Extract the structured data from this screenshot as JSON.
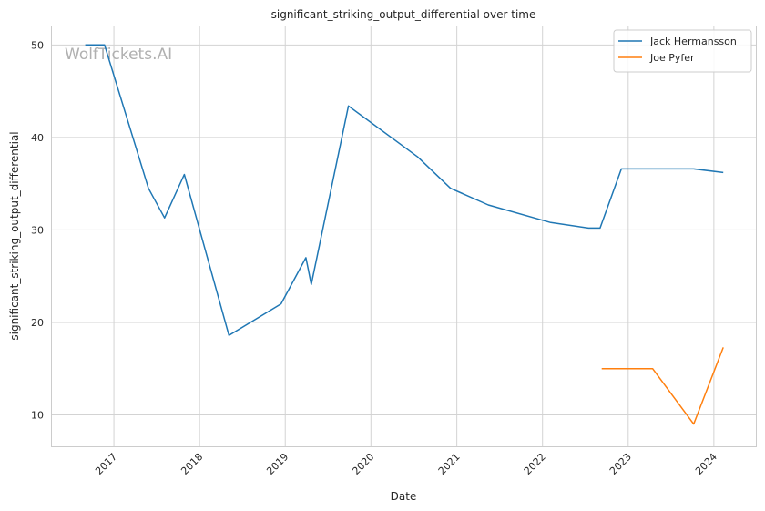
{
  "chart_data": {
    "type": "line",
    "title": "significant_striking_output_differential over time",
    "xlabel": "Date",
    "ylabel": "significant_striking_output_differential",
    "watermark": "WolfTickets.AI",
    "grid": true,
    "legend_placement": "top-right",
    "xlim": [
      "2016-04-08",
      "2024-06-28"
    ],
    "ylim": [
      6.6,
      52.1
    ],
    "x_ticks": [
      "2017",
      "2018",
      "2019",
      "2020",
      "2021",
      "2022",
      "2023",
      "2024"
    ],
    "y_ticks": [
      10,
      20,
      30,
      40,
      50
    ],
    "series": [
      {
        "name": "Jack Hermansson",
        "color": "#1f77b4",
        "points": [
          {
            "x": "2016-09-01",
            "y": 50.0
          },
          {
            "x": "2016-11-22",
            "y": 50.0
          },
          {
            "x": "2017-05-28",
            "y": 34.5
          },
          {
            "x": "2017-08-05",
            "y": 31.3
          },
          {
            "x": "2017-10-28",
            "y": 36.0
          },
          {
            "x": "2018-05-06",
            "y": 18.6
          },
          {
            "x": "2018-12-14",
            "y": 22.0
          },
          {
            "x": "2019-03-30",
            "y": 27.0
          },
          {
            "x": "2019-04-22",
            "y": 24.1
          },
          {
            "x": "2019-09-27",
            "y": 43.4
          },
          {
            "x": "2020-07-18",
            "y": 37.9
          },
          {
            "x": "2020-12-05",
            "y": 34.5
          },
          {
            "x": "2021-05-15",
            "y": 32.7
          },
          {
            "x": "2022-02-05",
            "y": 30.8
          },
          {
            "x": "2022-07-16",
            "y": 30.2
          },
          {
            "x": "2022-09-03",
            "y": 30.2
          },
          {
            "x": "2022-12-03",
            "y": 36.6
          },
          {
            "x": "2023-10-07",
            "y": 36.6
          },
          {
            "x": "2024-02-10",
            "y": 36.2
          }
        ]
      },
      {
        "name": "Joe Pyfer",
        "color": "#ff7f0e",
        "points": [
          {
            "x": "2022-09-10",
            "y": 15.0
          },
          {
            "x": "2023-04-15",
            "y": 15.0
          },
          {
            "x": "2023-10-07",
            "y": 9.0
          },
          {
            "x": "2024-02-10",
            "y": 17.3
          }
        ]
      }
    ]
  }
}
